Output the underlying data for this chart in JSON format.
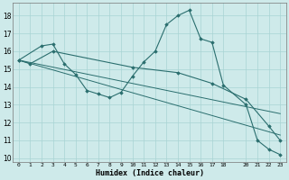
{
  "xlabel": "Humidex (Indice chaleur)",
  "bg_color": "#ceeaea",
  "grid_color": "#a8d4d4",
  "line_color": "#2a6e6e",
  "xlim": [
    -0.5,
    23.5
  ],
  "ylim": [
    9.8,
    18.7
  ],
  "yticks": [
    10,
    11,
    12,
    13,
    14,
    15,
    16,
    17,
    18
  ],
  "xticks": [
    0,
    1,
    2,
    3,
    4,
    5,
    6,
    7,
    8,
    9,
    10,
    11,
    12,
    13,
    14,
    15,
    16,
    17,
    18,
    20,
    21,
    22,
    23
  ],
  "series1_x": [
    0,
    2,
    3,
    4,
    5,
    6,
    7,
    8,
    9,
    10,
    11,
    12,
    13,
    14,
    15,
    16,
    17,
    18,
    20,
    21,
    22,
    23
  ],
  "series1_y": [
    15.5,
    16.3,
    16.4,
    15.3,
    14.7,
    13.8,
    13.6,
    13.4,
    13.7,
    14.6,
    15.4,
    16.0,
    17.5,
    18.0,
    18.3,
    16.7,
    16.5,
    14.1,
    13.0,
    11.0,
    10.5,
    10.2
  ],
  "series2_x": [
    0,
    1,
    3,
    10,
    14,
    17,
    20,
    22,
    23
  ],
  "series2_y": [
    15.5,
    15.3,
    16.0,
    15.1,
    14.8,
    14.2,
    13.3,
    11.8,
    11.0
  ],
  "series3_x": [
    0,
    23
  ],
  "series3_y": [
    15.5,
    11.3
  ],
  "series4_x": [
    0,
    23
  ],
  "series4_y": [
    15.5,
    12.5
  ]
}
